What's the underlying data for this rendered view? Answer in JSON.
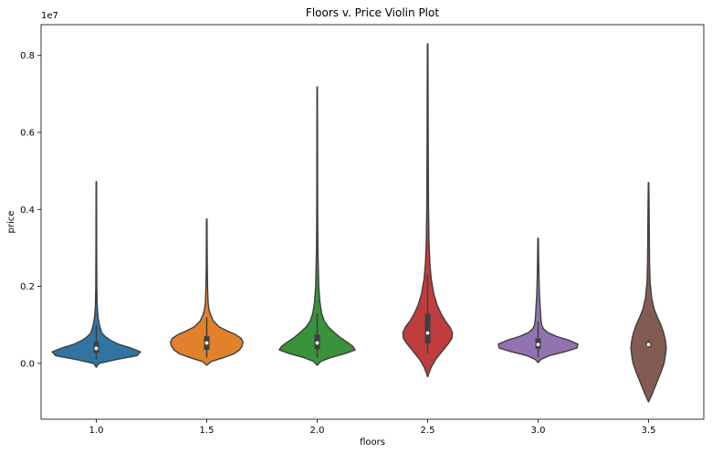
{
  "chart_data": {
    "type": "violin",
    "title": "Floors v. Price Violin Plot",
    "xlabel": "floors",
    "ylabel": "price",
    "y_offset_label": "1e7",
    "ylim": [
      -1450000.0,
      8800000.0
    ],
    "y_ticks": [
      0,
      2000000,
      4000000,
      6000000,
      8000000
    ],
    "y_tick_labels": [
      "0.0",
      "0.2",
      "0.4",
      "0.6",
      "0.8"
    ],
    "grid": false,
    "categories": [
      "1.0",
      "1.5",
      "2.0",
      "2.5",
      "3.0",
      "3.5"
    ],
    "series": [
      {
        "color": "#3274a1",
        "range": [
          0,
          4720000
        ],
        "quartiles": [
          270000,
          390000,
          560000
        ],
        "whiskers": [
          100000,
          1000000
        ],
        "median": 390000,
        "density": [
          [
            -100000,
            0.0
          ],
          [
            0,
            0.06
          ],
          [
            100000,
            0.45
          ],
          [
            200000,
            0.92
          ],
          [
            300000,
            1.0
          ],
          [
            400000,
            0.78
          ],
          [
            500000,
            0.5
          ],
          [
            600000,
            0.32
          ],
          [
            700000,
            0.2
          ],
          [
            800000,
            0.12
          ],
          [
            1000000,
            0.07
          ],
          [
            1200000,
            0.04
          ],
          [
            1500000,
            0.02
          ],
          [
            2000000,
            0.012
          ],
          [
            3000000,
            0.008
          ],
          [
            4000000,
            0.006
          ],
          [
            4720000,
            0.005
          ]
        ]
      },
      {
        "color": "#e1812c",
        "range": [
          -50000,
          3750000
        ],
        "quartiles": [
          350000,
          530000,
          710000
        ],
        "whiskers": [
          150000,
          1200000
        ],
        "median": 530000,
        "density": [
          [
            -50000,
            0.0
          ],
          [
            50000,
            0.1
          ],
          [
            150000,
            0.38
          ],
          [
            250000,
            0.62
          ],
          [
            350000,
            0.74
          ],
          [
            450000,
            0.8
          ],
          [
            550000,
            0.82
          ],
          [
            650000,
            0.78
          ],
          [
            750000,
            0.65
          ],
          [
            850000,
            0.45
          ],
          [
            950000,
            0.28
          ],
          [
            1100000,
            0.15
          ],
          [
            1250000,
            0.09
          ],
          [
            1400000,
            0.05
          ],
          [
            1600000,
            0.03
          ],
          [
            2000000,
            0.018
          ],
          [
            2500000,
            0.012
          ],
          [
            3000000,
            0.009
          ],
          [
            3750000,
            0.006
          ]
        ]
      },
      {
        "color": "#3a923a",
        "range": [
          -50000,
          7180000
        ],
        "quartiles": [
          370000,
          530000,
          750000
        ],
        "whiskers": [
          150000,
          1300000
        ],
        "median": 530000,
        "density": [
          [
            -50000,
            0.0
          ],
          [
            50000,
            0.08
          ],
          [
            150000,
            0.3
          ],
          [
            250000,
            0.62
          ],
          [
            350000,
            0.86
          ],
          [
            450000,
            0.8
          ],
          [
            550000,
            0.68
          ],
          [
            650000,
            0.55
          ],
          [
            750000,
            0.44
          ],
          [
            850000,
            0.34
          ],
          [
            950000,
            0.25
          ],
          [
            1100000,
            0.16
          ],
          [
            1300000,
            0.1
          ],
          [
            1600000,
            0.06
          ],
          [
            2000000,
            0.035
          ],
          [
            3000000,
            0.015
          ],
          [
            4000000,
            0.01
          ],
          [
            5000000,
            0.008
          ],
          [
            6000000,
            0.007
          ],
          [
            7180000,
            0.005
          ]
        ]
      },
      {
        "color": "#c03d3e",
        "range": [
          -350000,
          8300000
        ],
        "quartiles": [
          520000,
          790000,
          1290000
        ],
        "whiskers": [
          250000,
          2300000
        ],
        "median": 790000,
        "density": [
          [
            -350000,
            0.0
          ],
          [
            -250000,
            0.03
          ],
          [
            -100000,
            0.08
          ],
          [
            100000,
            0.18
          ],
          [
            300000,
            0.32
          ],
          [
            500000,
            0.46
          ],
          [
            650000,
            0.55
          ],
          [
            800000,
            0.56
          ],
          [
            950000,
            0.5
          ],
          [
            1100000,
            0.4
          ],
          [
            1300000,
            0.3
          ],
          [
            1500000,
            0.22
          ],
          [
            1800000,
            0.14
          ],
          [
            2200000,
            0.08
          ],
          [
            2600000,
            0.05
          ],
          [
            3200000,
            0.03
          ],
          [
            4000000,
            0.02
          ],
          [
            5000000,
            0.015
          ],
          [
            6000000,
            0.012
          ],
          [
            7000000,
            0.01
          ],
          [
            8300000,
            0.006
          ]
        ]
      },
      {
        "color": "#9372b2",
        "range": [
          20000,
          3250000
        ],
        "quartiles": [
          380000,
          490000,
          650000
        ],
        "whiskers": [
          150000,
          1100000
        ],
        "median": 490000,
        "density": [
          [
            20000,
            0.0
          ],
          [
            100000,
            0.06
          ],
          [
            200000,
            0.25
          ],
          [
            300000,
            0.6
          ],
          [
            400000,
            0.88
          ],
          [
            500000,
            0.9
          ],
          [
            600000,
            0.7
          ],
          [
            700000,
            0.42
          ],
          [
            800000,
            0.22
          ],
          [
            900000,
            0.12
          ],
          [
            1000000,
            0.08
          ],
          [
            1200000,
            0.06
          ],
          [
            1500000,
            0.045
          ],
          [
            1800000,
            0.03
          ],
          [
            2200000,
            0.02
          ],
          [
            2700000,
            0.012
          ],
          [
            3250000,
            0.006
          ]
        ]
      },
      {
        "color": "#845b53",
        "range": [
          -1000000,
          4700000
        ],
        "quartiles": [
          450000,
          490000,
          550000
        ],
        "whiskers": [
          400000,
          620000
        ],
        "median": 490000,
        "density": [
          [
            -1000000,
            0.0
          ],
          [
            -800000,
            0.08
          ],
          [
            -600000,
            0.15
          ],
          [
            -400000,
            0.22
          ],
          [
            -200000,
            0.29
          ],
          [
            0,
            0.35
          ],
          [
            200000,
            0.38
          ],
          [
            400000,
            0.4
          ],
          [
            600000,
            0.38
          ],
          [
            800000,
            0.34
          ],
          [
            1000000,
            0.28
          ],
          [
            1200000,
            0.2
          ],
          [
            1400000,
            0.13
          ],
          [
            1700000,
            0.07
          ],
          [
            2100000,
            0.035
          ],
          [
            2600000,
            0.022
          ],
          [
            3200000,
            0.018
          ],
          [
            3800000,
            0.014
          ],
          [
            4300000,
            0.01
          ],
          [
            4700000,
            0.005
          ]
        ]
      }
    ]
  }
}
